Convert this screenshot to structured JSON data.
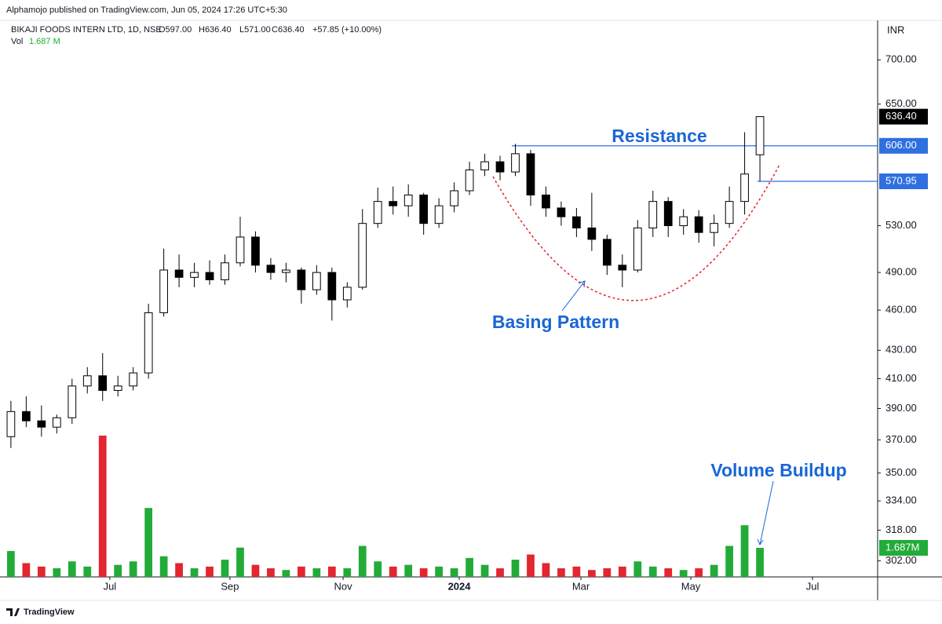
{
  "header": {
    "publisher": "Alphamojo published on TradingView.com, Jun 05, 2024 17:26 UTC+5:30",
    "symbol": "BIKAJI FOODS INTERN LTD, 1D, NSE",
    "ohlc": [
      "O597.00",
      "H636.40",
      "L571.00",
      "C636.40",
      "+57.85 (+10.00%)"
    ],
    "vol_label": "Vol",
    "vol_value": "1.687 M",
    "currency": "INR"
  },
  "footer": {
    "brand": "TradingView"
  },
  "annotations": [
    "Resistance",
    "Basing Pattern",
    "Volume Buildup"
  ],
  "chart_data": {
    "type": "candlestick",
    "log_scale": true,
    "categories": [
      null,
      null,
      null,
      null,
      null,
      null,
      null,
      null,
      null,
      null,
      null,
      null,
      null,
      null,
      null,
      null,
      null,
      null,
      null,
      null,
      null,
      null,
      null,
      null,
      null,
      null,
      null,
      null,
      null,
      null,
      null,
      null,
      null,
      null,
      null,
      null,
      null,
      null,
      null,
      null,
      null,
      null,
      null,
      null,
      null,
      null,
      null,
      null,
      null,
      null
    ],
    "open": [
      372,
      388,
      382,
      378,
      384,
      405,
      412,
      402,
      405,
      414,
      458,
      492,
      486,
      490,
      484,
      498,
      520,
      496,
      490,
      492,
      476,
      490,
      468,
      478,
      532,
      552,
      548,
      558,
      532,
      548,
      562,
      582,
      590,
      580,
      598,
      558,
      546,
      538,
      528,
      518,
      496,
      492,
      528,
      552,
      530,
      538,
      524,
      532,
      552,
      597
    ],
    "high": [
      395,
      398,
      392,
      386,
      410,
      418,
      428,
      412,
      418,
      465,
      510,
      505,
      498,
      500,
      505,
      538,
      525,
      502,
      498,
      494,
      496,
      494,
      482,
      545,
      565,
      566,
      568,
      560,
      555,
      570,
      590,
      598,
      596,
      608,
      602,
      566,
      552,
      546,
      560,
      522,
      505,
      535,
      562,
      556,
      545,
      544,
      540,
      566,
      620,
      636.4
    ],
    "low": [
      365,
      378,
      372,
      374,
      380,
      400,
      395,
      398,
      402,
      410,
      455,
      478,
      478,
      480,
      480,
      495,
      490,
      484,
      482,
      465,
      472,
      452,
      462,
      476,
      528,
      540,
      538,
      522,
      528,
      542,
      558,
      576,
      572,
      576,
      548,
      538,
      530,
      520,
      508,
      488,
      478,
      490,
      520,
      520,
      522,
      515,
      512,
      528,
      540,
      571
    ],
    "close": [
      388,
      382,
      378,
      384,
      405,
      412,
      402,
      405,
      414,
      458,
      492,
      486,
      490,
      484,
      498,
      520,
      496,
      490,
      492,
      476,
      490,
      468,
      478,
      532,
      552,
      548,
      558,
      532,
      548,
      562,
      582,
      590,
      580,
      598,
      558,
      546,
      538,
      528,
      518,
      496,
      492,
      528,
      552,
      530,
      538,
      524,
      532,
      552,
      578,
      636.4
    ],
    "close_labels": [
      null,
      null,
      null,
      null,
      null,
      null,
      null,
      null,
      null,
      null,
      null,
      null,
      null,
      null,
      null,
      null,
      null,
      null,
      null,
      null,
      null,
      null,
      null,
      null,
      null,
      null,
      null,
      null,
      null,
      null,
      null,
      null,
      null,
      null,
      null,
      null,
      null,
      null,
      null,
      null,
      null,
      null,
      null,
      null,
      null,
      null,
      null,
      null,
      null,
      "636.40"
    ],
    "volume": [
      1.5,
      0.8,
      0.6,
      0.5,
      0.9,
      0.6,
      8.2,
      0.7,
      0.9,
      4.0,
      1.2,
      0.8,
      0.5,
      0.6,
      1.0,
      1.7,
      0.7,
      0.5,
      0.4,
      0.6,
      0.5,
      0.6,
      0.5,
      1.8,
      0.9,
      0.6,
      0.7,
      0.5,
      0.6,
      0.5,
      1.1,
      0.7,
      0.5,
      1.0,
      1.3,
      0.8,
      0.5,
      0.6,
      0.4,
      0.5,
      0.6,
      0.9,
      0.6,
      0.5,
      0.4,
      0.5,
      0.7,
      1.8,
      3.0,
      1.687
    ],
    "volume_labels": [
      null,
      null,
      null,
      null,
      null,
      null,
      null,
      null,
      null,
      null,
      null,
      null,
      null,
      null,
      null,
      null,
      null,
      null,
      null,
      null,
      null,
      null,
      null,
      null,
      null,
      null,
      null,
      null,
      null,
      null,
      null,
      null,
      null,
      null,
      null,
      null,
      null,
      null,
      null,
      null,
      null,
      null,
      null,
      null,
      null,
      null,
      null,
      null,
      null,
      "1.687M"
    ],
    "up_color": "#ffffff",
    "down_color": "#000000",
    "wick_color": "#000000",
    "volume_up_color": "#22ab38",
    "volume_down_color": "#e3262f",
    "levels": [
      {
        "value": 606,
        "label": "606.00"
      },
      {
        "value": 570.95,
        "label": "570.95"
      }
    ],
    "level_color": "#2f6fe0",
    "ylim": [
      294,
      744
    ],
    "yticks": [
      {
        "value": 302,
        "label": "302.00"
      },
      {
        "value": 318,
        "label": "318.00"
      },
      {
        "value": 334,
        "label": "334.00"
      },
      {
        "value": 350,
        "label": "350.00"
      },
      {
        "value": 370,
        "label": "370.00"
      },
      {
        "value": 390,
        "label": "390.00"
      },
      {
        "value": 410,
        "label": "410.00"
      },
      {
        "value": 430,
        "label": "430.00"
      },
      {
        "value": 460,
        "label": "460.00"
      },
      {
        "value": 490,
        "label": "490.00"
      },
      {
        "value": 530,
        "label": "530.00"
      },
      {
        "value": 650,
        "label": "650.00"
      },
      {
        "value": 700,
        "label": "700.00"
      }
    ],
    "xlim": [
      -0.2,
      56.7
    ],
    "xticks": [
      {
        "value": 6.47,
        "label": "Jul"
      },
      {
        "value": 14.33,
        "label": "Sep"
      },
      {
        "value": 21.73,
        "label": "Nov"
      },
      {
        "value": 29.33,
        "label": "2024"
      },
      {
        "value": 37.29,
        "label": "Mar"
      },
      {
        "value": 44.48,
        "label": "May"
      },
      {
        "value": 52.44,
        "label": "Jul"
      }
    ]
  }
}
